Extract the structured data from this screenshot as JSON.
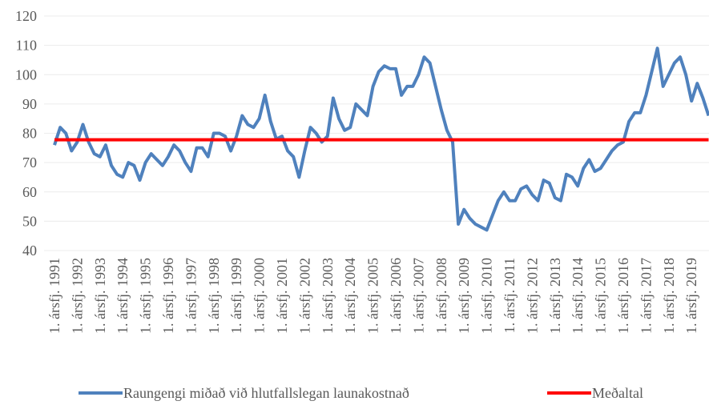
{
  "chart_data": {
    "type": "line",
    "categories": [
      "1. ársfj. 1991",
      null,
      null,
      null,
      "1. ársfj. 1992",
      null,
      null,
      null,
      "1. ársfj. 1993",
      null,
      null,
      null,
      "1. ársfj. 1994",
      null,
      null,
      null,
      "1. ársfj. 1995",
      null,
      null,
      null,
      "1. ársfj. 1996",
      null,
      null,
      null,
      "1. ársfj. 1997",
      null,
      null,
      null,
      "1. ársfj. 1998",
      null,
      null,
      null,
      "1. ársfj. 1999",
      null,
      null,
      null,
      "1. ársfj. 2000",
      null,
      null,
      null,
      "1. ársfj. 2001",
      null,
      null,
      null,
      "1. ársfj. 2002",
      null,
      null,
      null,
      "1. ársfj. 2003",
      null,
      null,
      null,
      "1. ársfj. 2004",
      null,
      null,
      null,
      "1. ársfj. 2005",
      null,
      null,
      null,
      "1. ársfj. 2006",
      null,
      null,
      null,
      "1. ársfj. 2007",
      null,
      null,
      null,
      "1. ársfj. 2008",
      null,
      null,
      null,
      "1. ársfj. 2009",
      null,
      null,
      null,
      "1. ársfj. 2010",
      null,
      null,
      null,
      "1. ársfj. 2011",
      null,
      null,
      null,
      "1. ársfj. 2012",
      null,
      null,
      null,
      "1. ársfj. 2013",
      null,
      null,
      null,
      "1. ársfj. 2014",
      null,
      null,
      null,
      "1. ársfj. 2015",
      null,
      null,
      null,
      "1. ársfj. 2016",
      null,
      null,
      null,
      "1. ársfj. 2017",
      null,
      null,
      null,
      "1. ársfj. 2018",
      null,
      null,
      null,
      "1. ársfj. 2019",
      null,
      null,
      null
    ],
    "series": [
      {
        "name": "Raungengi miðað við hlutfallslegan launakostnað",
        "color": "#4f81bd",
        "width": 4,
        "values": [
          76,
          82,
          80,
          74,
          77,
          83,
          77,
          73,
          72,
          76,
          69,
          66,
          65,
          70,
          69,
          64,
          70,
          73,
          71,
          69,
          72,
          76,
          74,
          70,
          67,
          75,
          75,
          72,
          80,
          80,
          79,
          74,
          79,
          86,
          83,
          82,
          85,
          93,
          84,
          78,
          79,
          74,
          72,
          65,
          74,
          82,
          80,
          77,
          79,
          92,
          85,
          81,
          82,
          90,
          88,
          86,
          96,
          101,
          103,
          102,
          102,
          93,
          96,
          96,
          100,
          106,
          104,
          96,
          88,
          81,
          77,
          49,
          54,
          51,
          49,
          48,
          47,
          52,
          57,
          60,
          57,
          57,
          61,
          62,
          59,
          57,
          64,
          63,
          58,
          57,
          66,
          65,
          62,
          68,
          71,
          67,
          68,
          71,
          74,
          76,
          77,
          84,
          87,
          87,
          93,
          101,
          109,
          96,
          100,
          104,
          106,
          100,
          91,
          97,
          92,
          86
        ]
      },
      {
        "name": "Meðaltal",
        "color": "#ff0000",
        "width": 4,
        "values": [
          77.8,
          77.8,
          77.8,
          77.8,
          77.8,
          77.8,
          77.8,
          77.8,
          77.8,
          77.8,
          77.8,
          77.8,
          77.8,
          77.8,
          77.8,
          77.8,
          77.8,
          77.8,
          77.8,
          77.8,
          77.8,
          77.8,
          77.8,
          77.8,
          77.8,
          77.8,
          77.8,
          77.8,
          77.8,
          77.8,
          77.8,
          77.8,
          77.8,
          77.8,
          77.8,
          77.8,
          77.8,
          77.8,
          77.8,
          77.8,
          77.8,
          77.8,
          77.8,
          77.8,
          77.8,
          77.8,
          77.8,
          77.8,
          77.8,
          77.8,
          77.8,
          77.8,
          77.8,
          77.8,
          77.8,
          77.8,
          77.8,
          77.8,
          77.8,
          77.8,
          77.8,
          77.8,
          77.8,
          77.8,
          77.8,
          77.8,
          77.8,
          77.8,
          77.8,
          77.8,
          77.8,
          77.8,
          77.8,
          77.8,
          77.8,
          77.8,
          77.8,
          77.8,
          77.8,
          77.8,
          77.8,
          77.8,
          77.8,
          77.8,
          77.8,
          77.8,
          77.8,
          77.8,
          77.8,
          77.8,
          77.8,
          77.8,
          77.8,
          77.8,
          77.8,
          77.8,
          77.8,
          77.8,
          77.8,
          77.8,
          77.8,
          77.8,
          77.8,
          77.8,
          77.8,
          77.8,
          77.8,
          77.8,
          77.8,
          77.8,
          77.8,
          77.8,
          77.8,
          77.8,
          77.8,
          77.8
        ]
      }
    ],
    "ylim": [
      40,
      120
    ],
    "yticks": [
      40,
      50,
      60,
      70,
      80,
      90,
      100,
      110,
      120
    ],
    "grid": true
  }
}
